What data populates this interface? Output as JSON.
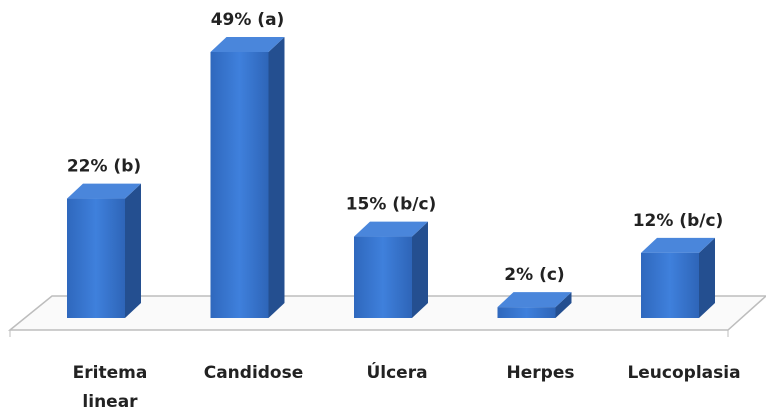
{
  "chart_data": {
    "type": "bar3d",
    "categories": [
      "Eritema linear",
      "Candidose",
      "Úlcera",
      "Herpes",
      "Leucoplasia"
    ],
    "values": [
      22,
      49,
      15,
      2,
      12
    ],
    "value_labels": [
      "22% (b)",
      "49% (a)",
      "15% (b/c)",
      "2% (c)",
      "12% (b/c)"
    ],
    "color": "#3a77cf"
  }
}
